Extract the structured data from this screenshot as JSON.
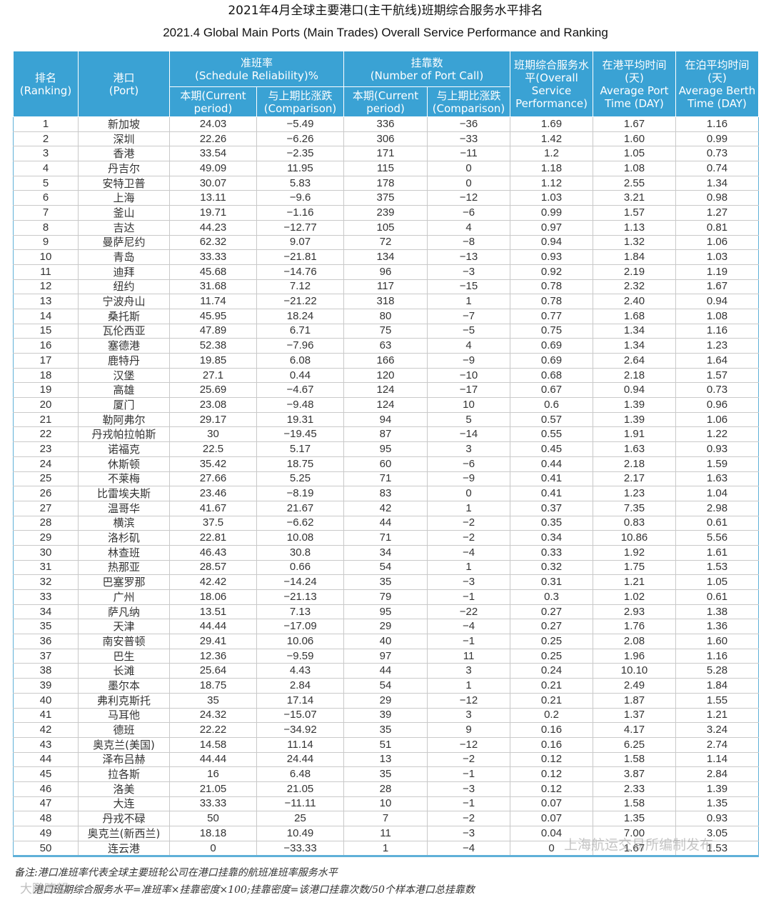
{
  "title_zh": "2021年4月全球主要港口(主干航线)班期综合服务水平排名",
  "title_en": "2021.4 Global Main Ports (Main Trades) Overall Service Performance and Ranking",
  "headers": {
    "rank_zh": "排名",
    "rank_en": "(Ranking)",
    "port_zh": "港口",
    "port_en": "(Port)",
    "reliability_zh": "准班率",
    "reliability_en": "(Schedule Reliability)%",
    "portcall_zh": "挂靠数",
    "portcall_en": "(Number of Port Call)",
    "current_zh": "本期(Current",
    "current_en": "period)",
    "comparison_zh": "与上期比涨跌",
    "comparison_en": "(Comparison)",
    "overall_zh": "班期综合服务水平(Overall",
    "overall_en": "Service Performance)",
    "port_time_zh": "在港平均时间(天)",
    "port_time_en": "Average Port Time (DAY)",
    "berth_time_zh": "在泊平均时间(天)",
    "berth_time_en": "Average Berth Time (DAY)"
  },
  "rows": [
    [
      "1",
      "新加坡",
      "24.03",
      "−5.49",
      "336",
      "−36",
      "1.69",
      "1.67",
      "1.16"
    ],
    [
      "2",
      "深圳",
      "22.26",
      "−6.26",
      "306",
      "−33",
      "1.42",
      "1.60",
      "0.99"
    ],
    [
      "3",
      "香港",
      "33.54",
      "−2.35",
      "171",
      "−11",
      "1.2",
      "1.05",
      "0.73"
    ],
    [
      "4",
      "丹吉尔",
      "49.09",
      "11.95",
      "115",
      "0",
      "1.18",
      "1.08",
      "0.74"
    ],
    [
      "5",
      "安特卫普",
      "30.07",
      "5.83",
      "178",
      "0",
      "1.12",
      "2.55",
      "1.34"
    ],
    [
      "6",
      "上海",
      "13.11",
      "−9.6",
      "375",
      "−12",
      "1.03",
      "3.21",
      "0.98"
    ],
    [
      "7",
      "釜山",
      "19.71",
      "−1.16",
      "239",
      "−6",
      "0.99",
      "1.57",
      "1.27"
    ],
    [
      "8",
      "吉达",
      "44.23",
      "−12.77",
      "105",
      "4",
      "0.97",
      "1.13",
      "0.81"
    ],
    [
      "9",
      "曼萨尼约",
      "62.32",
      "9.07",
      "72",
      "−8",
      "0.94",
      "1.32",
      "1.06"
    ],
    [
      "10",
      "青岛",
      "33.33",
      "−21.81",
      "134",
      "−13",
      "0.93",
      "1.84",
      "1.03"
    ],
    [
      "11",
      "迪拜",
      "45.68",
      "−14.76",
      "96",
      "−3",
      "0.92",
      "2.19",
      "1.19"
    ],
    [
      "12",
      "纽约",
      "31.68",
      "7.12",
      "117",
      "−15",
      "0.78",
      "2.32",
      "1.67"
    ],
    [
      "13",
      "宁波舟山",
      "11.74",
      "−21.22",
      "318",
      "1",
      "0.78",
      "2.40",
      "0.94"
    ],
    [
      "14",
      "桑托斯",
      "45.95",
      "18.24",
      "80",
      "−7",
      "0.77",
      "1.68",
      "1.08"
    ],
    [
      "15",
      "瓦伦西亚",
      "47.89",
      "6.71",
      "75",
      "−5",
      "0.75",
      "1.34",
      "1.16"
    ],
    [
      "16",
      "塞德港",
      "52.38",
      "−7.96",
      "63",
      "4",
      "0.69",
      "1.34",
      "1.23"
    ],
    [
      "17",
      "鹿特丹",
      "19.85",
      "6.08",
      "166",
      "−9",
      "0.69",
      "2.64",
      "1.64"
    ],
    [
      "18",
      "汉堡",
      "27.1",
      "0.44",
      "120",
      "−10",
      "0.68",
      "2.18",
      "1.57"
    ],
    [
      "19",
      "高雄",
      "25.69",
      "−4.67",
      "124",
      "−17",
      "0.67",
      "0.94",
      "0.73"
    ],
    [
      "20",
      "厦门",
      "23.08",
      "−9.48",
      "124",
      "10",
      "0.6",
      "1.39",
      "0.96"
    ],
    [
      "21",
      "勒阿弗尔",
      "29.17",
      "19.31",
      "94",
      "5",
      "0.57",
      "1.39",
      "1.06"
    ],
    [
      "22",
      "丹戎帕拉帕斯",
      "30",
      "−19.45",
      "87",
      "−14",
      "0.55",
      "1.91",
      "1.22"
    ],
    [
      "23",
      "诺福克",
      "22.5",
      "5.17",
      "95",
      "3",
      "0.45",
      "1.63",
      "0.93"
    ],
    [
      "24",
      "休斯顿",
      "35.42",
      "18.75",
      "60",
      "−6",
      "0.44",
      "2.18",
      "1.59"
    ],
    [
      "25",
      "不莱梅",
      "27.66",
      "5.25",
      "71",
      "−9",
      "0.41",
      "2.17",
      "1.63"
    ],
    [
      "26",
      "比雷埃夫斯",
      "23.46",
      "−8.19",
      "83",
      "0",
      "0.41",
      "1.23",
      "1.04"
    ],
    [
      "27",
      "温哥华",
      "41.67",
      "21.67",
      "42",
      "1",
      "0.37",
      "7.35",
      "2.98"
    ],
    [
      "28",
      "横滨",
      "37.5",
      "−6.62",
      "44",
      "−2",
      "0.35",
      "0.83",
      "0.61"
    ],
    [
      "29",
      "洛杉矶",
      "22.81",
      "10.08",
      "71",
      "−2",
      "0.34",
      "10.86",
      "5.56"
    ],
    [
      "30",
      "林查班",
      "46.43",
      "30.8",
      "34",
      "−4",
      "0.33",
      "1.92",
      "1.61"
    ],
    [
      "31",
      "热那亚",
      "28.57",
      "0.66",
      "54",
      "1",
      "0.32",
      "1.75",
      "1.53"
    ],
    [
      "32",
      "巴塞罗那",
      "42.42",
      "−14.24",
      "35",
      "−3",
      "0.31",
      "1.21",
      "1.05"
    ],
    [
      "33",
      "广州",
      "18.06",
      "−21.13",
      "79",
      "−1",
      "0.3",
      "1.02",
      "0.61"
    ],
    [
      "34",
      "萨凡纳",
      "13.51",
      "7.13",
      "95",
      "−22",
      "0.27",
      "2.93",
      "1.38"
    ],
    [
      "35",
      "天津",
      "44.44",
      "−17.09",
      "29",
      "−4",
      "0.27",
      "1.76",
      "1.36"
    ],
    [
      "36",
      "南安普顿",
      "29.41",
      "10.06",
      "40",
      "−1",
      "0.25",
      "2.08",
      "1.60"
    ],
    [
      "37",
      "巴生",
      "12.36",
      "−9.59",
      "97",
      "11",
      "0.25",
      "1.96",
      "1.16"
    ],
    [
      "38",
      "长滩",
      "25.64",
      "4.43",
      "44",
      "3",
      "0.24",
      "10.10",
      "5.28"
    ],
    [
      "39",
      "墨尔本",
      "18.75",
      "2.84",
      "54",
      "1",
      "0.21",
      "2.49",
      "1.84"
    ],
    [
      "40",
      "弗利克斯托",
      "35",
      "17.14",
      "29",
      "−12",
      "0.21",
      "1.87",
      "1.55"
    ],
    [
      "41",
      "马耳他",
      "24.32",
      "−15.07",
      "39",
      "3",
      "0.2",
      "1.37",
      "1.21"
    ],
    [
      "42",
      "德班",
      "22.22",
      "−34.92",
      "35",
      "9",
      "0.16",
      "4.17",
      "3.24"
    ],
    [
      "43",
      "奥克兰(美国)",
      "14.58",
      "11.14",
      "51",
      "−12",
      "0.16",
      "6.25",
      "2.74"
    ],
    [
      "44",
      "泽布吕赫",
      "44.44",
      "24.44",
      "13",
      "−2",
      "0.12",
      "1.58",
      "1.14"
    ],
    [
      "45",
      "拉各斯",
      "16",
      "6.48",
      "35",
      "−1",
      "0.12",
      "3.87",
      "2.84"
    ],
    [
      "46",
      "洛美",
      "21.05",
      "21.05",
      "28",
      "−3",
      "0.12",
      "2.33",
      "1.39"
    ],
    [
      "47",
      "大连",
      "33.33",
      "−11.11",
      "10",
      "−1",
      "0.07",
      "1.58",
      "1.35"
    ],
    [
      "48",
      "丹戎不碌",
      "50",
      "25",
      "7",
      "−2",
      "0.07",
      "1.35",
      "0.93"
    ],
    [
      "49",
      "奥克兰(新西兰)",
      "18.18",
      "10.49",
      "11",
      "−3",
      "0.04",
      "7.00",
      "3.05"
    ],
    [
      "50",
      "连云港",
      "0",
      "−33.33",
      "1",
      "−4",
      "0",
      "1.67",
      "1.53"
    ]
  ],
  "notes": {
    "note1": "备注:港口准班率代表全球主要班轮公司在港口挂靠的航班准班率服务水平",
    "note2": "港口班期综合服务水平=准班率×挂靠密度×100;挂靠密度=该港口挂靠次数/50个样本港口总挂靠数"
  },
  "watermark": "上海航运交易所编制发布",
  "corner_mark": "大鹏瞭望"
}
